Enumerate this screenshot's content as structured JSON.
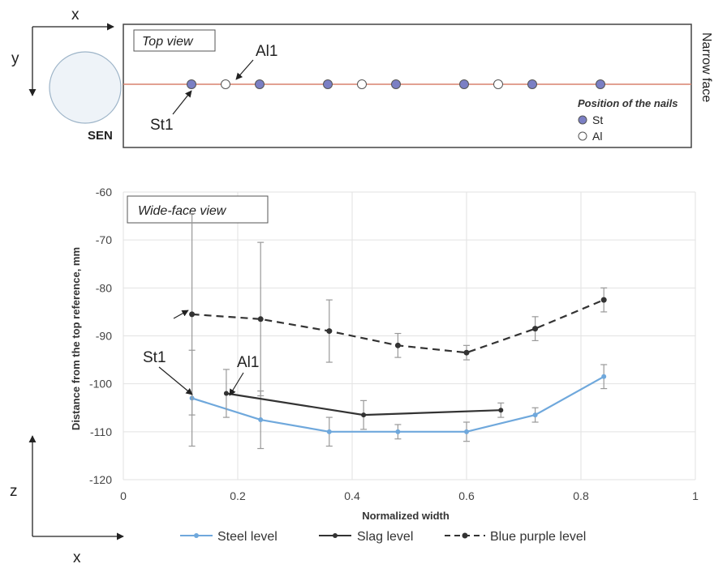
{
  "top": {
    "axis_x": "x",
    "axis_y": "y",
    "box_label": "Top view",
    "sen_label": "SEN",
    "narrow_face_label": "Narrow face",
    "st_callout": "St1",
    "al_callout": "Al1",
    "legend_title": "Position of the nails",
    "legend_st": "St",
    "legend_al": "Al",
    "nails": [
      {
        "x": 0.12,
        "type": "St"
      },
      {
        "x": 0.18,
        "type": "Al"
      },
      {
        "x": 0.24,
        "type": "St"
      },
      {
        "x": 0.36,
        "type": "St"
      },
      {
        "x": 0.42,
        "type": "Al"
      },
      {
        "x": 0.48,
        "type": "St"
      },
      {
        "x": 0.6,
        "type": "St"
      },
      {
        "x": 0.66,
        "type": "Al"
      },
      {
        "x": 0.72,
        "type": "St"
      },
      {
        "x": 0.84,
        "type": "St"
      }
    ],
    "colors": {
      "st": "#7b7fc4",
      "al": "#ffffff",
      "line": "#d9826f"
    }
  },
  "side_axes": {
    "z": "z",
    "x": "x"
  },
  "chart_data": {
    "type": "line",
    "box_label": "Wide-face view",
    "xlabel": "Normalized width",
    "ylabel": "Distance from the top reference, mm",
    "xlim": [
      0,
      1
    ],
    "ylim": [
      -120,
      -60
    ],
    "xticks": [
      0,
      0.2,
      0.4,
      0.6,
      0.8,
      1
    ],
    "xtick_labels": [
      "0",
      "0.2",
      "0.4",
      "0.6",
      "0.8",
      "1"
    ],
    "yticks": [
      -60,
      -70,
      -80,
      -90,
      -100,
      -110,
      -120
    ],
    "ytick_labels": [
      "-60",
      "-70",
      "-80",
      "-90",
      "-100",
      "-110",
      "-120"
    ],
    "grid": true,
    "legend_position": "bottom",
    "annotations": [
      {
        "text": "St1",
        "x": 0.12
      },
      {
        "text": "Al1",
        "x": 0.18
      }
    ],
    "series": [
      {
        "name": "Steel level",
        "color": "#6fa8dc",
        "style": "solid",
        "x": [
          0.12,
          0.24,
          0.36,
          0.48,
          0.6,
          0.72,
          0.84
        ],
        "y": [
          -103,
          -107.5,
          -110,
          -110,
          -110,
          -106.5,
          -98.5
        ],
        "err": [
          10,
          6,
          3,
          1.5,
          2,
          1.5,
          2.5
        ]
      },
      {
        "name": "Slag level",
        "color": "#333333",
        "style": "solid",
        "x": [
          0.18,
          0.42,
          0.66
        ],
        "y": [
          -102,
          -106.5,
          -105.5
        ],
        "err": [
          5,
          3,
          1.5
        ]
      },
      {
        "name": "Blue purple level",
        "color": "#333333",
        "style": "dashed",
        "x": [
          0.12,
          0.24,
          0.36,
          0.48,
          0.6,
          0.72,
          0.84
        ],
        "y": [
          -85.5,
          -86.5,
          -89,
          -92,
          -93.5,
          -88.5,
          -82.5
        ],
        "err": [
          21,
          16,
          6.5,
          2.5,
          1.5,
          2.5,
          2.5
        ]
      }
    ]
  }
}
